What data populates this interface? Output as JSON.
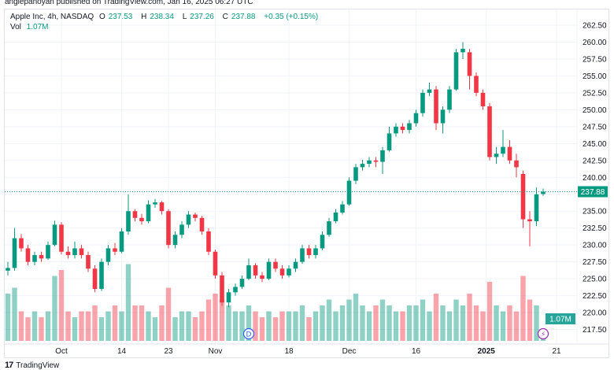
{
  "header": {
    "published": "angiepanoyan published on TradingView.com, Jan 16, 2025 06:27 UTC"
  },
  "legend": {
    "symbol": "Apple Inc, 4h, NASDAQ",
    "o_label": "O",
    "o": "237.53",
    "h_label": "H",
    "h": "238.34",
    "l_label": "L",
    "l": "237.26",
    "c_label": "C",
    "c": "237.88",
    "change": "+0.35 (+0.15%)",
    "vol_label": "Vol",
    "vol": "1.07M"
  },
  "footer": {
    "logo_text": "TradingView",
    "logo_mark": "17"
  },
  "colors": {
    "up": "#089981",
    "down": "#f23645",
    "grid": "#f0f3fa"
  },
  "chart_data": {
    "type": "candlestick",
    "title": "Apple Inc, 4h, NASDAQ",
    "ylim": [
      217.5,
      265
    ],
    "y_ticks": [
      "262.50",
      "260.00",
      "257.50",
      "255.00",
      "252.50",
      "250.00",
      "247.50",
      "245.00",
      "242.50",
      "240.00",
      "235.00",
      "232.50",
      "230.00",
      "227.50",
      "225.00",
      "222.50",
      "220.00",
      "217.50"
    ],
    "last_price_label": "237.88",
    "last_volume_label": "1.07M",
    "x_ticks": [
      {
        "label": "Oct",
        "index": 8
      },
      {
        "label": "14",
        "index": 17
      },
      {
        "label": "23",
        "index": 24
      },
      {
        "label": "Nov",
        "index": 31
      },
      {
        "label": "18",
        "index": 42
      },
      {
        "label": "Dec",
        "index": 51
      },
      {
        "label": "16",
        "index": 61
      },
      {
        "label": "2025",
        "index": 71.5
      },
      {
        "label": "21",
        "index": 82
      }
    ],
    "events": [
      {
        "type": "dividend",
        "label": "D",
        "index": 36
      },
      {
        "type": "earnings",
        "label": "⚡",
        "index": 80
      }
    ],
    "volume_unit": "M",
    "candles_ohlcv": [
      [
        226.2,
        227.5,
        225.5,
        226.6,
        8
      ],
      [
        226.6,
        232.5,
        226.2,
        231.0,
        9
      ],
      [
        231.0,
        231.6,
        229.0,
        229.5,
        5
      ],
      [
        229.5,
        230.0,
        227.0,
        227.5,
        4
      ],
      [
        227.5,
        229.0,
        227.0,
        228.5,
        5
      ],
      [
        228.5,
        229.0,
        227.5,
        228.0,
        4
      ],
      [
        228.0,
        230.5,
        227.8,
        230.0,
        5
      ],
      [
        230.0,
        233.6,
        229.8,
        233.0,
        11
      ],
      [
        233.0,
        233.4,
        228.6,
        229.0,
        12
      ],
      [
        229.0,
        229.8,
        228.0,
        228.5,
        5
      ],
      [
        228.5,
        230.5,
        228.0,
        229.5,
        4
      ],
      [
        229.5,
        230.0,
        228.0,
        228.5,
        5
      ],
      [
        228.5,
        229.0,
        226.0,
        226.5,
        5
      ],
      [
        226.5,
        227.0,
        223.0,
        223.5,
        6
      ],
      [
        223.5,
        228.0,
        223.2,
        227.5,
        4
      ],
      [
        227.5,
        230.0,
        227.0,
        229.5,
        5
      ],
      [
        229.5,
        230.3,
        228.5,
        229.0,
        6
      ],
      [
        229.0,
        232.5,
        228.8,
        232.0,
        5
      ],
      [
        232.0,
        237.5,
        231.5,
        235.0,
        13
      ],
      [
        235.0,
        235.3,
        233.5,
        234.0,
        6
      ],
      [
        234.0,
        234.6,
        233.0,
        233.5,
        6
      ],
      [
        233.5,
        236.6,
        233.2,
        236.0,
        5
      ],
      [
        236.0,
        236.8,
        235.5,
        236.3,
        4
      ],
      [
        236.3,
        236.5,
        234.5,
        235.0,
        6
      ],
      [
        235.0,
        235.3,
        229.5,
        230.0,
        9
      ],
      [
        230.0,
        232.0,
        229.5,
        231.5,
        4
      ],
      [
        231.5,
        233.5,
        231.0,
        233.0,
        5
      ],
      [
        233.0,
        235.0,
        232.5,
        234.5,
        5
      ],
      [
        234.5,
        234.8,
        233.5,
        234.0,
        4
      ],
      [
        234.0,
        234.3,
        231.5,
        232.0,
        5
      ],
      [
        232.0,
        232.5,
        228.5,
        229.0,
        7
      ],
      [
        229.0,
        229.3,
        225.0,
        225.5,
        8
      ],
      [
        225.5,
        226.0,
        221.0,
        221.5,
        7
      ],
      [
        221.5,
        223.5,
        220.8,
        223.0,
        6
      ],
      [
        223.0,
        224.3,
        222.5,
        223.8,
        5
      ],
      [
        223.8,
        225.5,
        223.5,
        225.0,
        5
      ],
      [
        225.0,
        228.0,
        224.8,
        227.0,
        6
      ],
      [
        227.0,
        227.3,
        225.0,
        225.5,
        5
      ],
      [
        225.5,
        226.0,
        224.5,
        225.0,
        4
      ],
      [
        225.0,
        228.0,
        224.8,
        227.5,
        5
      ],
      [
        227.5,
        228.0,
        226.0,
        226.5,
        4
      ],
      [
        226.5,
        227.0,
        225.0,
        225.5,
        5
      ],
      [
        225.5,
        227.0,
        225.2,
        226.5,
        5
      ],
      [
        226.5,
        228.0,
        226.0,
        227.5,
        5
      ],
      [
        227.5,
        230.0,
        227.2,
        229.5,
        6
      ],
      [
        229.5,
        230.0,
        228.0,
        228.5,
        4
      ],
      [
        228.5,
        230.0,
        228.0,
        229.5,
        5
      ],
      [
        229.5,
        232.0,
        229.2,
        231.5,
        6
      ],
      [
        231.5,
        234.0,
        231.2,
        233.5,
        7
      ],
      [
        233.5,
        235.3,
        233.2,
        234.8,
        5
      ],
      [
        234.8,
        236.5,
        234.5,
        236.0,
        6
      ],
      [
        236.0,
        240.0,
        235.8,
        239.5,
        7
      ],
      [
        239.5,
        242.0,
        239.0,
        241.5,
        8
      ],
      [
        241.5,
        242.6,
        241.0,
        242.0,
        6
      ],
      [
        242.0,
        243.0,
        241.5,
        242.5,
        5
      ],
      [
        242.5,
        243.0,
        241.5,
        242.3,
        6
      ],
      [
        242.3,
        244.5,
        240.5,
        244.0,
        7
      ],
      [
        244.0,
        247.5,
        243.8,
        246.5,
        6
      ],
      [
        246.5,
        248.0,
        246.0,
        247.5,
        5
      ],
      [
        247.5,
        248.0,
        246.5,
        247.0,
        5
      ],
      [
        247.0,
        248.5,
        246.5,
        248.0,
        6
      ],
      [
        248.0,
        250.0,
        247.5,
        249.5,
        6
      ],
      [
        249.5,
        253.0,
        249.0,
        252.5,
        7
      ],
      [
        252.5,
        254.0,
        252.0,
        253.0,
        5
      ],
      [
        253.0,
        253.5,
        247.0,
        248.0,
        8
      ],
      [
        248.0,
        250.5,
        246.5,
        250.0,
        6
      ],
      [
        250.0,
        253.5,
        249.5,
        253.0,
        5
      ],
      [
        253.0,
        259.0,
        252.8,
        258.5,
        7
      ],
      [
        258.5,
        260.0,
        257.5,
        259.0,
        6
      ],
      [
        258.5,
        259.0,
        253.0,
        255.0,
        8
      ],
      [
        255.0,
        255.5,
        252.0,
        252.5,
        6
      ],
      [
        252.5,
        253.0,
        250.0,
        250.5,
        5
      ],
      [
        250.5,
        251.0,
        242.5,
        243.0,
        10
      ],
      [
        243.0,
        244.5,
        242.0,
        243.5,
        6
      ],
      [
        243.5,
        247.0,
        243.0,
        244.5,
        5
      ],
      [
        244.5,
        245.5,
        242.0,
        242.5,
        6
      ],
      [
        242.5,
        243.5,
        240.0,
        241.5,
        5
      ],
      [
        240.5,
        241.0,
        232.5,
        233.8,
        11
      ],
      [
        233.8,
        235.0,
        229.8,
        233.5,
        7
      ],
      [
        233.5,
        238.5,
        232.8,
        237.5,
        6
      ],
      [
        237.53,
        238.34,
        237.26,
        237.88,
        1.07
      ]
    ]
  }
}
